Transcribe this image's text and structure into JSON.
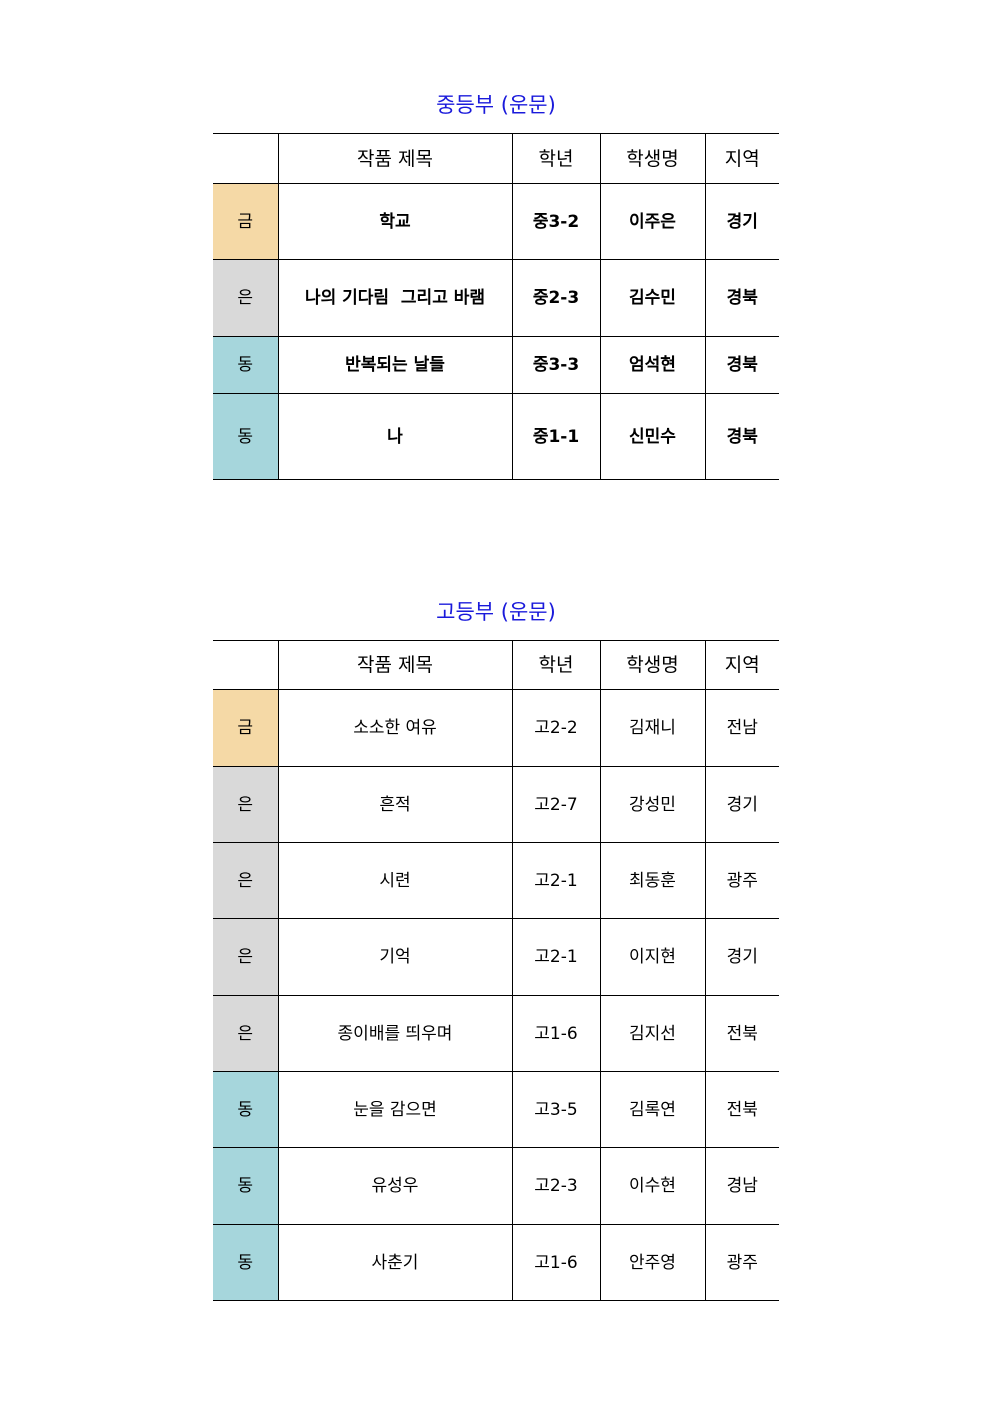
{
  "colors": {
    "gold": "#f5d9a6",
    "silver": "#d9d9d9",
    "bronze": "#a6d6dc",
    "title": "#1a1adb"
  },
  "headers": [
    "",
    "작품 제목",
    "학년",
    "학생명",
    "지역"
  ],
  "middle": {
    "title": "중등부 (운문)",
    "rows": [
      {
        "medal": "금",
        "work": "학교",
        "grade": "중3-2",
        "name": "이주은",
        "region": "경기",
        "tier": "gold"
      },
      {
        "medal": "은",
        "work": "나의 기다림  그리고 바램",
        "grade": "중2-3",
        "name": "김수민",
        "region": "경북",
        "tier": "silver"
      },
      {
        "medal": "동",
        "work": "반복되는 날들",
        "grade": "중3-3",
        "name": "엄석현",
        "region": "경북",
        "tier": "bronze"
      },
      {
        "medal": "동",
        "work": "나",
        "grade": "중1-1",
        "name": "신민수",
        "region": "경북",
        "tier": "bronze"
      }
    ]
  },
  "high": {
    "title": "고등부 (운문)",
    "rows": [
      {
        "medal": "금",
        "work": "소소한 여유",
        "grade": "고2-2",
        "name": "김재니",
        "region": "전남",
        "tier": "gold"
      },
      {
        "medal": "은",
        "work": "흔적",
        "grade": "고2-7",
        "name": "강성민",
        "region": "경기",
        "tier": "silver"
      },
      {
        "medal": "은",
        "work": "시련",
        "grade": "고2-1",
        "name": "최동훈",
        "region": "광주",
        "tier": "silver"
      },
      {
        "medal": "은",
        "work": "기억",
        "grade": "고2-1",
        "name": "이지현",
        "region": "경기",
        "tier": "silver"
      },
      {
        "medal": "은",
        "work": "종이배를 띄우며",
        "grade": "고1-6",
        "name": "김지선",
        "region": "전북",
        "tier": "silver"
      },
      {
        "medal": "동",
        "work": "눈을 감으면",
        "grade": "고3-5",
        "name": "김록연",
        "region": "전북",
        "tier": "bronze"
      },
      {
        "medal": "동",
        "work": "유성우",
        "grade": "고2-3",
        "name": "이수현",
        "region": "경남",
        "tier": "bronze"
      },
      {
        "medal": "동",
        "work": "사춘기",
        "grade": "고1-6",
        "name": "안주영",
        "region": "광주",
        "tier": "bronze"
      }
    ]
  }
}
